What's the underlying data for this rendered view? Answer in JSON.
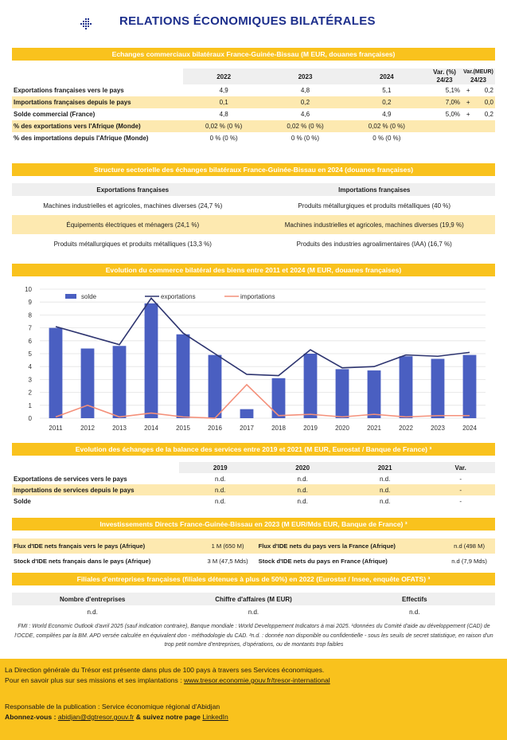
{
  "title": "RELATIONS ÉCONOMIQUES BILATÉRALES",
  "banners": {
    "trade": "Echanges commerciaux bilatéraux France-Guinée-Bissau (M EUR, douanes françaises)",
    "sector": "Structure sectorielle des échanges bilatéraux France-Guinée-Bissau en 2024 (douanes françaises)",
    "chart": "Evolution du commerce bilatéral des biens entre 2011 et 2024 (M EUR, douanes françaises)",
    "services": "Evolution des échanges de la balance des services entre 2019 et 2021 (M EUR, Eurostat / Banque de France) ³",
    "ide": "Investissements Directs France-Guinée-Bissau en 2023 (M EUR/Mds EUR, Banque de France) ³",
    "filiales": "Filiales d'entreprises françaises (filiales détenues à plus de 50%) en 2022 (Eurostat / Insee, enquête OFATS) ³"
  },
  "trade": {
    "years": [
      "2022",
      "2023",
      "2024"
    ],
    "var_pct_header": [
      "Var. (%)",
      "24/23"
    ],
    "var_meur_header": [
      "Var.(MEUR)",
      "24/23"
    ],
    "rows": [
      {
        "label": "Exportations françaises vers le pays",
        "v": [
          "4,9",
          "4,8",
          "5,1"
        ],
        "pct": "5,1%",
        "sign": "+",
        "dv": "0,2",
        "hl": false
      },
      {
        "label": "Importations françaises depuis le pays",
        "v": [
          "0,1",
          "0,2",
          "0,2"
        ],
        "pct": "7,0%",
        "sign": "+",
        "dv": "0,0",
        "hl": true
      },
      {
        "label": "Solde commercial (France)",
        "v": [
          "4,8",
          "4,6",
          "4,9"
        ],
        "pct": "5,0%",
        "sign": "+",
        "dv": "0,2",
        "hl": false
      },
      {
        "label": "% des exportations vers l'Afrique (Monde)",
        "v": [
          "0,02 % (0 %)",
          "0,02 % (0 %)",
          "0,02 % (0 %)"
        ],
        "pct": "",
        "sign": "",
        "dv": "",
        "hl": true
      },
      {
        "label": "% des importations depuis l'Afrique (Monde)",
        "v": [
          "0 % (0 %)",
          "0 % (0 %)",
          "0 % (0 %)"
        ],
        "pct": "",
        "sign": "",
        "dv": "",
        "hl": false
      }
    ]
  },
  "sector": {
    "headers": [
      "Exportations françaises",
      "Importations françaises"
    ],
    "rows": [
      [
        "Machines industrielles et agricoles, machines diverses (24,7 %)",
        "Produits métallurgiques et produits métalliques (40 %)"
      ],
      [
        "Équipements électriques et ménagers (24,1 %)",
        "Machines industrielles et agricoles, machines diverses (19,9 %)"
      ],
      [
        "Produits métallurgiques et produits métalliques (13,3 %)",
        "Produits des industries agroalimentaires (IAA) (16,7 %)"
      ]
    ]
  },
  "chart_data": {
    "type": "bar",
    "title": "",
    "categories": [
      "2011",
      "2012",
      "2013",
      "2014",
      "2015",
      "2016",
      "2017",
      "2018",
      "2019",
      "2020",
      "2021",
      "2022",
      "2023",
      "2024"
    ],
    "ylim": [
      0,
      10
    ],
    "yticks": [
      "0",
      "1",
      "2",
      "3",
      "4",
      "5",
      "6",
      "7",
      "8",
      "9",
      "10"
    ],
    "legend_position": "top-left",
    "series": [
      {
        "name": "solde",
        "kind": "bar",
        "color": "#4a5fc1",
        "values": [
          7.0,
          5.4,
          5.6,
          8.9,
          6.5,
          4.9,
          0.7,
          3.1,
          5.0,
          3.8,
          3.7,
          4.8,
          4.6,
          4.9
        ]
      },
      {
        "name": "exportations",
        "kind": "line",
        "color": "#2e3570",
        "values": [
          7.1,
          6.4,
          5.7,
          9.3,
          6.6,
          5.0,
          3.4,
          3.3,
          5.3,
          3.9,
          4.0,
          4.9,
          4.8,
          5.1
        ]
      },
      {
        "name": "importations",
        "kind": "line",
        "color": "#f4907a",
        "values": [
          0.1,
          1.0,
          0.1,
          0.4,
          0.1,
          0.0,
          2.6,
          0.2,
          0.3,
          0.1,
          0.3,
          0.1,
          0.2,
          0.2
        ]
      }
    ]
  },
  "services": {
    "years": [
      "2019",
      "2020",
      "2021",
      "Var."
    ],
    "rows": [
      {
        "label": "Exportations de services vers le pays",
        "v": [
          "n.d.",
          "n.d.",
          "n.d.",
          "-"
        ],
        "hl": false
      },
      {
        "label": "Importations de services depuis le pays",
        "v": [
          "n.d.",
          "n.d.",
          "n.d.",
          "-"
        ],
        "hl": true
      },
      {
        "label": "Solde",
        "v": [
          "n.d.",
          "n.d.",
          "n.d.",
          "-"
        ],
        "hl": false
      }
    ]
  },
  "ide": {
    "rows": [
      {
        "l1": "Flux d'IDE nets français vers le pays (Afrique)",
        "v1": "1 M (650 M)",
        "l2": "Flux d'IDE nets du pays vers la France (Afrique)",
        "v2": "n.d (498 M)",
        "hl": true
      },
      {
        "l1": "Stock d'IDE nets français dans le pays (Afrique)",
        "v1": "3 M (47,5 Mds)",
        "l2": "Stock d'IDE nets du pays  en France (Afrique)",
        "v2": "n.d (7,9 Mds)",
        "hl": false
      }
    ]
  },
  "filiales": {
    "headers": [
      "Nombre d'entreprises",
      "Chiffre d'affaires (M EUR)",
      "Effectifs"
    ],
    "values": [
      "n.d.",
      "n.d.",
      "n.d."
    ]
  },
  "footnote": "FMI : World Economic Outlook d'avril 2025 (sauf indication contraire), Banque mondiale : World Developpement Indicators à mai 2025. ¹données du Comité d'aide au développement (CAD) de l'OCDE, compilées par la BM. APD versée calculée en équivalent don - méthodologie du CAD. ²n.d. : donnée non disponible ou confidentielle - sous les seuils de secret statistique, en raison d'un trop petit nombre d'entreprises, d'opérations, ou de montants trop faibles",
  "footer": {
    "line1": "La Direction générale du Trésor est présente dans plus de 100 pays à travers ses Services économiques.",
    "line2_prefix": "Pour en savoir plus sur ses missions et ses implantations : ",
    "line2_link": "www.tresor.economie.gouv.fr/tresor-international",
    "line3": "Responsable de la publication : Service économique régional d'Abidjan",
    "line4_prefix": "Abonnez-vous : ",
    "line4_email": "abidjan@dgtresor.gouv.fr",
    "line4_mid": " & suivez notre page ",
    "line4_link": "LinkedIn"
  }
}
